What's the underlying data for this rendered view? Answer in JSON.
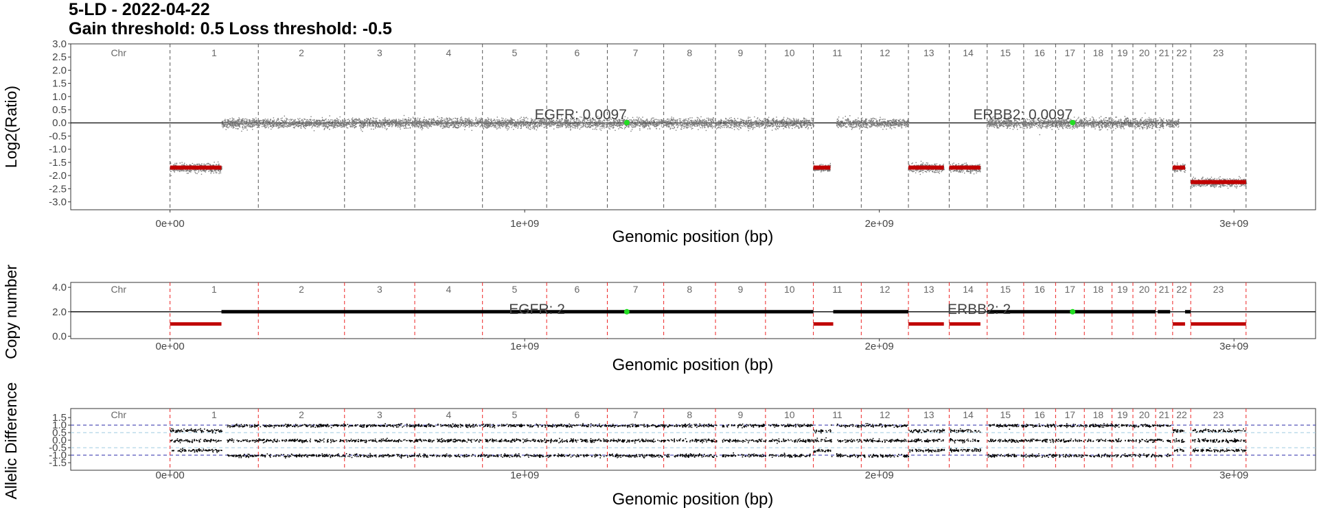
{
  "title": {
    "line1": "5-LD - 2022-04-22",
    "line2": "Gain threshold:  0.5  Loss threshold: -0.5"
  },
  "colors": {
    "points": "#7a7a7a",
    "segment_loss": "#c00000",
    "segment_normal": "#000000",
    "gene_marker": "#22dd22",
    "chr_divider_top": "#555555",
    "chr_divider_lower": "#ee2222",
    "allelic_points": "#000000",
    "allelic_ref_dark": "#2a2aa8",
    "allelic_ref_light": "#9ecae1"
  },
  "chart_data": [
    {
      "type": "scatter",
      "ylabel": "Log2(Ratio)",
      "xlabel": "Genomic position (bp)",
      "xlim": [
        -280000000,
        3230000000
      ],
      "ylim": [
        -3.3,
        3.0
      ],
      "x_ticks": [
        0,
        1000000000,
        2000000000,
        3000000000
      ],
      "x_tick_labels": [
        "0e+00",
        "1e+09",
        "2e+09",
        "3e+09"
      ],
      "y_ticks": [
        3.0,
        2.5,
        2.0,
        1.5,
        1.0,
        0.5,
        0.0,
        -0.5,
        -1.0,
        -1.5,
        -2.0,
        -2.5,
        -3.0
      ],
      "y_tick_labels": [
        "3.0",
        "2.5",
        "2.0",
        "1.5",
        "1.0",
        "0.5",
        "0.0",
        "-0.5",
        "-1.0",
        "-1.5",
        "-2.0",
        "-2.5",
        "-3.0"
      ],
      "chromosome_label_header": "Chr",
      "chromosomes": [
        "1",
        "2",
        "3",
        "4",
        "5",
        "6",
        "7",
        "8",
        "9",
        "10",
        "11",
        "12",
        "13",
        "14",
        "15",
        "16",
        "17",
        "18",
        "19",
        "20",
        "21",
        "22",
        "23"
      ],
      "chromosome_boundaries": [
        0,
        249000000,
        492000000,
        690000000,
        881000000,
        1062000000,
        1233000000,
        1392000000,
        1538000000,
        1679000000,
        1814000000,
        1949000000,
        2082000000,
        2197000000,
        2304000000,
        2407000000,
        2497000000,
        2578000000,
        2656000000,
        2715000000,
        2779000000,
        2827000000,
        2878000000,
        3034000000
      ],
      "reference_line_y": 0.0,
      "segments": [
        {
          "x0": 0,
          "x1": 145000000,
          "y": -1.7
        },
        {
          "x0": 1814000000,
          "x1": 1862000000,
          "y": -1.7
        },
        {
          "x0": 2082000000,
          "x1": 2182000000,
          "y": -1.7
        },
        {
          "x0": 2197000000,
          "x1": 2285000000,
          "y": -1.7
        },
        {
          "x0": 2827000000,
          "x1": 2862000000,
          "y": -1.7
        },
        {
          "x0": 2878000000,
          "x1": 3034000000,
          "y": -2.25
        }
      ],
      "point_regions": [
        {
          "x0": 0,
          "x1": 145000000,
          "y": -1.7,
          "spread": 0.18
        },
        {
          "x0": 145000000,
          "x1": 1814000000,
          "y": 0.0,
          "spread": 0.2
        },
        {
          "x0": 1814000000,
          "x1": 1862000000,
          "y": -1.7,
          "spread": 0.15
        },
        {
          "x0": 1878000000,
          "x1": 2082000000,
          "y": 0.0,
          "spread": 0.18
        },
        {
          "x0": 2082000000,
          "x1": 2182000000,
          "y": -1.7,
          "spread": 0.18
        },
        {
          "x0": 2197000000,
          "x1": 2285000000,
          "y": -1.7,
          "spread": 0.18
        },
        {
          "x0": 2304000000,
          "x1": 2801000000,
          "y": 0.0,
          "spread": 0.2
        },
        {
          "x0": 2808000000,
          "x1": 2845000000,
          "y": 0.0,
          "spread": 0.15
        },
        {
          "x0": 2827000000,
          "x1": 2862000000,
          "y": -1.7,
          "spread": 0.15
        },
        {
          "x0": 2878000000,
          "x1": 3034000000,
          "y": -2.25,
          "spread": 0.18
        }
      ],
      "genes": [
        {
          "name": "EGFR",
          "value_label": "EGFR: 0.0097",
          "x": 1288000000,
          "y": 0.0097
        },
        {
          "name": "ERBB2",
          "value_label": "ERBB2: 0.0097",
          "x": 2545000000,
          "y": 0.0097
        }
      ]
    },
    {
      "type": "line",
      "ylabel": "Copy number",
      "xlabel": "Genomic position (bp)",
      "xlim": [
        -280000000,
        3230000000
      ],
      "ylim": [
        -0.2,
        4.4
      ],
      "x_ticks": [
        0,
        1000000000,
        2000000000,
        3000000000
      ],
      "x_tick_labels": [
        "0e+00",
        "1e+09",
        "2e+09",
        "3e+09"
      ],
      "y_ticks": [
        4.0,
        2.0,
        0.0
      ],
      "y_tick_labels": [
        "4.0",
        "2.0",
        "0.0"
      ],
      "chromosome_label_header": "Chr",
      "reference_line_y": 2.0,
      "segments": [
        {
          "x0": 0,
          "x1": 145000000,
          "y": 1.0,
          "status": "loss"
        },
        {
          "x0": 145000000,
          "x1": 1814000000,
          "y": 2.0,
          "status": "normal"
        },
        {
          "x0": 1814000000,
          "x1": 1870000000,
          "y": 1.0,
          "status": "loss"
        },
        {
          "x0": 1870000000,
          "x1": 2082000000,
          "y": 2.0,
          "status": "normal"
        },
        {
          "x0": 2082000000,
          "x1": 2182000000,
          "y": 1.0,
          "status": "loss"
        },
        {
          "x0": 2197000000,
          "x1": 2285000000,
          "y": 1.0,
          "status": "loss"
        },
        {
          "x0": 2304000000,
          "x1": 2779000000,
          "y": 2.0,
          "status": "normal"
        },
        {
          "x0": 2785000000,
          "x1": 2820000000,
          "y": 2.0,
          "status": "normal"
        },
        {
          "x0": 2827000000,
          "x1": 2862000000,
          "y": 1.0,
          "status": "loss"
        },
        {
          "x0": 2862000000,
          "x1": 2878000000,
          "y": 2.0,
          "status": "normal"
        },
        {
          "x0": 2878000000,
          "x1": 3034000000,
          "y": 1.0,
          "status": "loss"
        }
      ],
      "genes": [
        {
          "name": "EGFR",
          "value_label": "EGFR: 2",
          "x": 1288000000,
          "y": 2.0
        },
        {
          "name": "ERBB2",
          "value_label": "ERBB2: 2",
          "x": 2545000000,
          "y": 2.0
        }
      ]
    },
    {
      "type": "scatter",
      "ylabel": "Allelic Difference",
      "xlabel": "Genomic position (bp)",
      "xlim": [
        -280000000,
        3230000000
      ],
      "ylim": [
        -2.0,
        2.1
      ],
      "x_ticks": [
        0,
        1000000000,
        2000000000,
        3000000000
      ],
      "x_tick_labels": [
        "0e+00",
        "1e+09",
        "2e+09",
        "3e+09"
      ],
      "y_ticks": [
        1.5,
        1.0,
        0.5,
        0.0,
        -0.5,
        -1.0,
        -1.5
      ],
      "y_tick_labels": [
        "1.5",
        "1.0",
        "0.5",
        "0.0",
        "-0.5",
        "-1.0",
        "-1.5"
      ],
      "chromosome_label_header": "Chr",
      "reference_lines": [
        1.0,
        -1.0,
        0.5,
        -0.5
      ],
      "bands_normal": [
        1.0,
        0.0,
        -1.0
      ],
      "bands_loss": [
        0.65,
        0.0,
        -0.65
      ],
      "loss_regions": [
        [
          0,
          145000000
        ],
        [
          1814000000,
          1862000000
        ],
        [
          2082000000,
          2182000000
        ],
        [
          2197000000,
          2285000000
        ],
        [
          2827000000,
          2862000000
        ],
        [
          2878000000,
          3034000000
        ]
      ],
      "point_regions": [
        [
          0,
          145000000
        ],
        [
          160000000,
          1540000000
        ],
        [
          1555000000,
          1679000000
        ],
        [
          1686000000,
          1814000000
        ],
        [
          1814000000,
          1865000000
        ],
        [
          1878000000,
          2082000000
        ],
        [
          2082000000,
          2182000000
        ],
        [
          2197000000,
          2285000000
        ],
        [
          2304000000,
          2801000000
        ],
        [
          2808000000,
          2820000000
        ],
        [
          2827000000,
          2862000000
        ],
        [
          2878000000,
          3034000000
        ]
      ]
    }
  ]
}
